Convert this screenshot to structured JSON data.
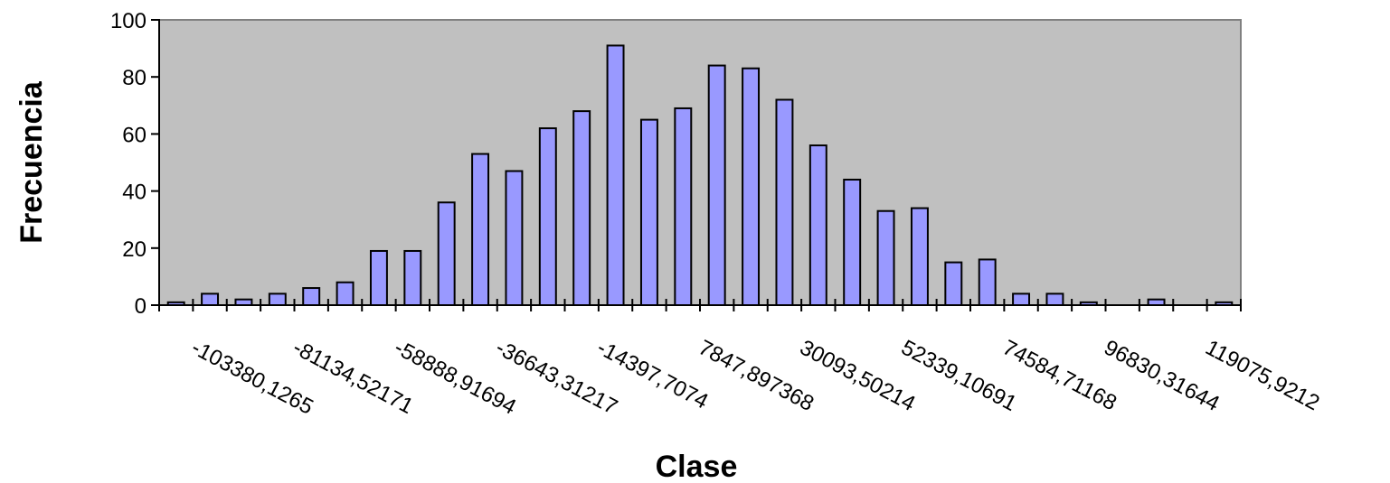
{
  "chart_data": {
    "type": "bar",
    "title": "",
    "xlabel": "Clase",
    "ylabel": "Frecuencia",
    "ylim": [
      0,
      100
    ],
    "yticks": [
      0,
      20,
      40,
      60,
      80,
      100
    ],
    "grid": false,
    "legend": "none",
    "colors": {
      "plot_bg": "#c0c0c0",
      "bar_fill": "#9999ff",
      "bar_stroke": "#000000",
      "axis": "#000000"
    },
    "bin_count": 32,
    "values": [
      1,
      4,
      2,
      4,
      6,
      8,
      19,
      19,
      36,
      53,
      47,
      62,
      68,
      91,
      65,
      69,
      84,
      83,
      72,
      56,
      44,
      33,
      34,
      15,
      16,
      4,
      4,
      1,
      0,
      2,
      0,
      1
    ],
    "labeled_bins": [
      {
        "bin": 1,
        "label": "-103380,1265"
      },
      {
        "bin": 4,
        "label": "-81134,52171"
      },
      {
        "bin": 7,
        "label": "-58888,91694"
      },
      {
        "bin": 10,
        "label": "-36643,31217"
      },
      {
        "bin": 13,
        "label": "-14397,7074"
      },
      {
        "bin": 16,
        "label": "7847,897368"
      },
      {
        "bin": 19,
        "label": "30093,50214"
      },
      {
        "bin": 22,
        "label": "52339,10691"
      },
      {
        "bin": 25,
        "label": "74584,71168"
      },
      {
        "bin": 28,
        "label": "96830,31644"
      },
      {
        "bin": 31,
        "label": "119075,9212"
      }
    ]
  }
}
